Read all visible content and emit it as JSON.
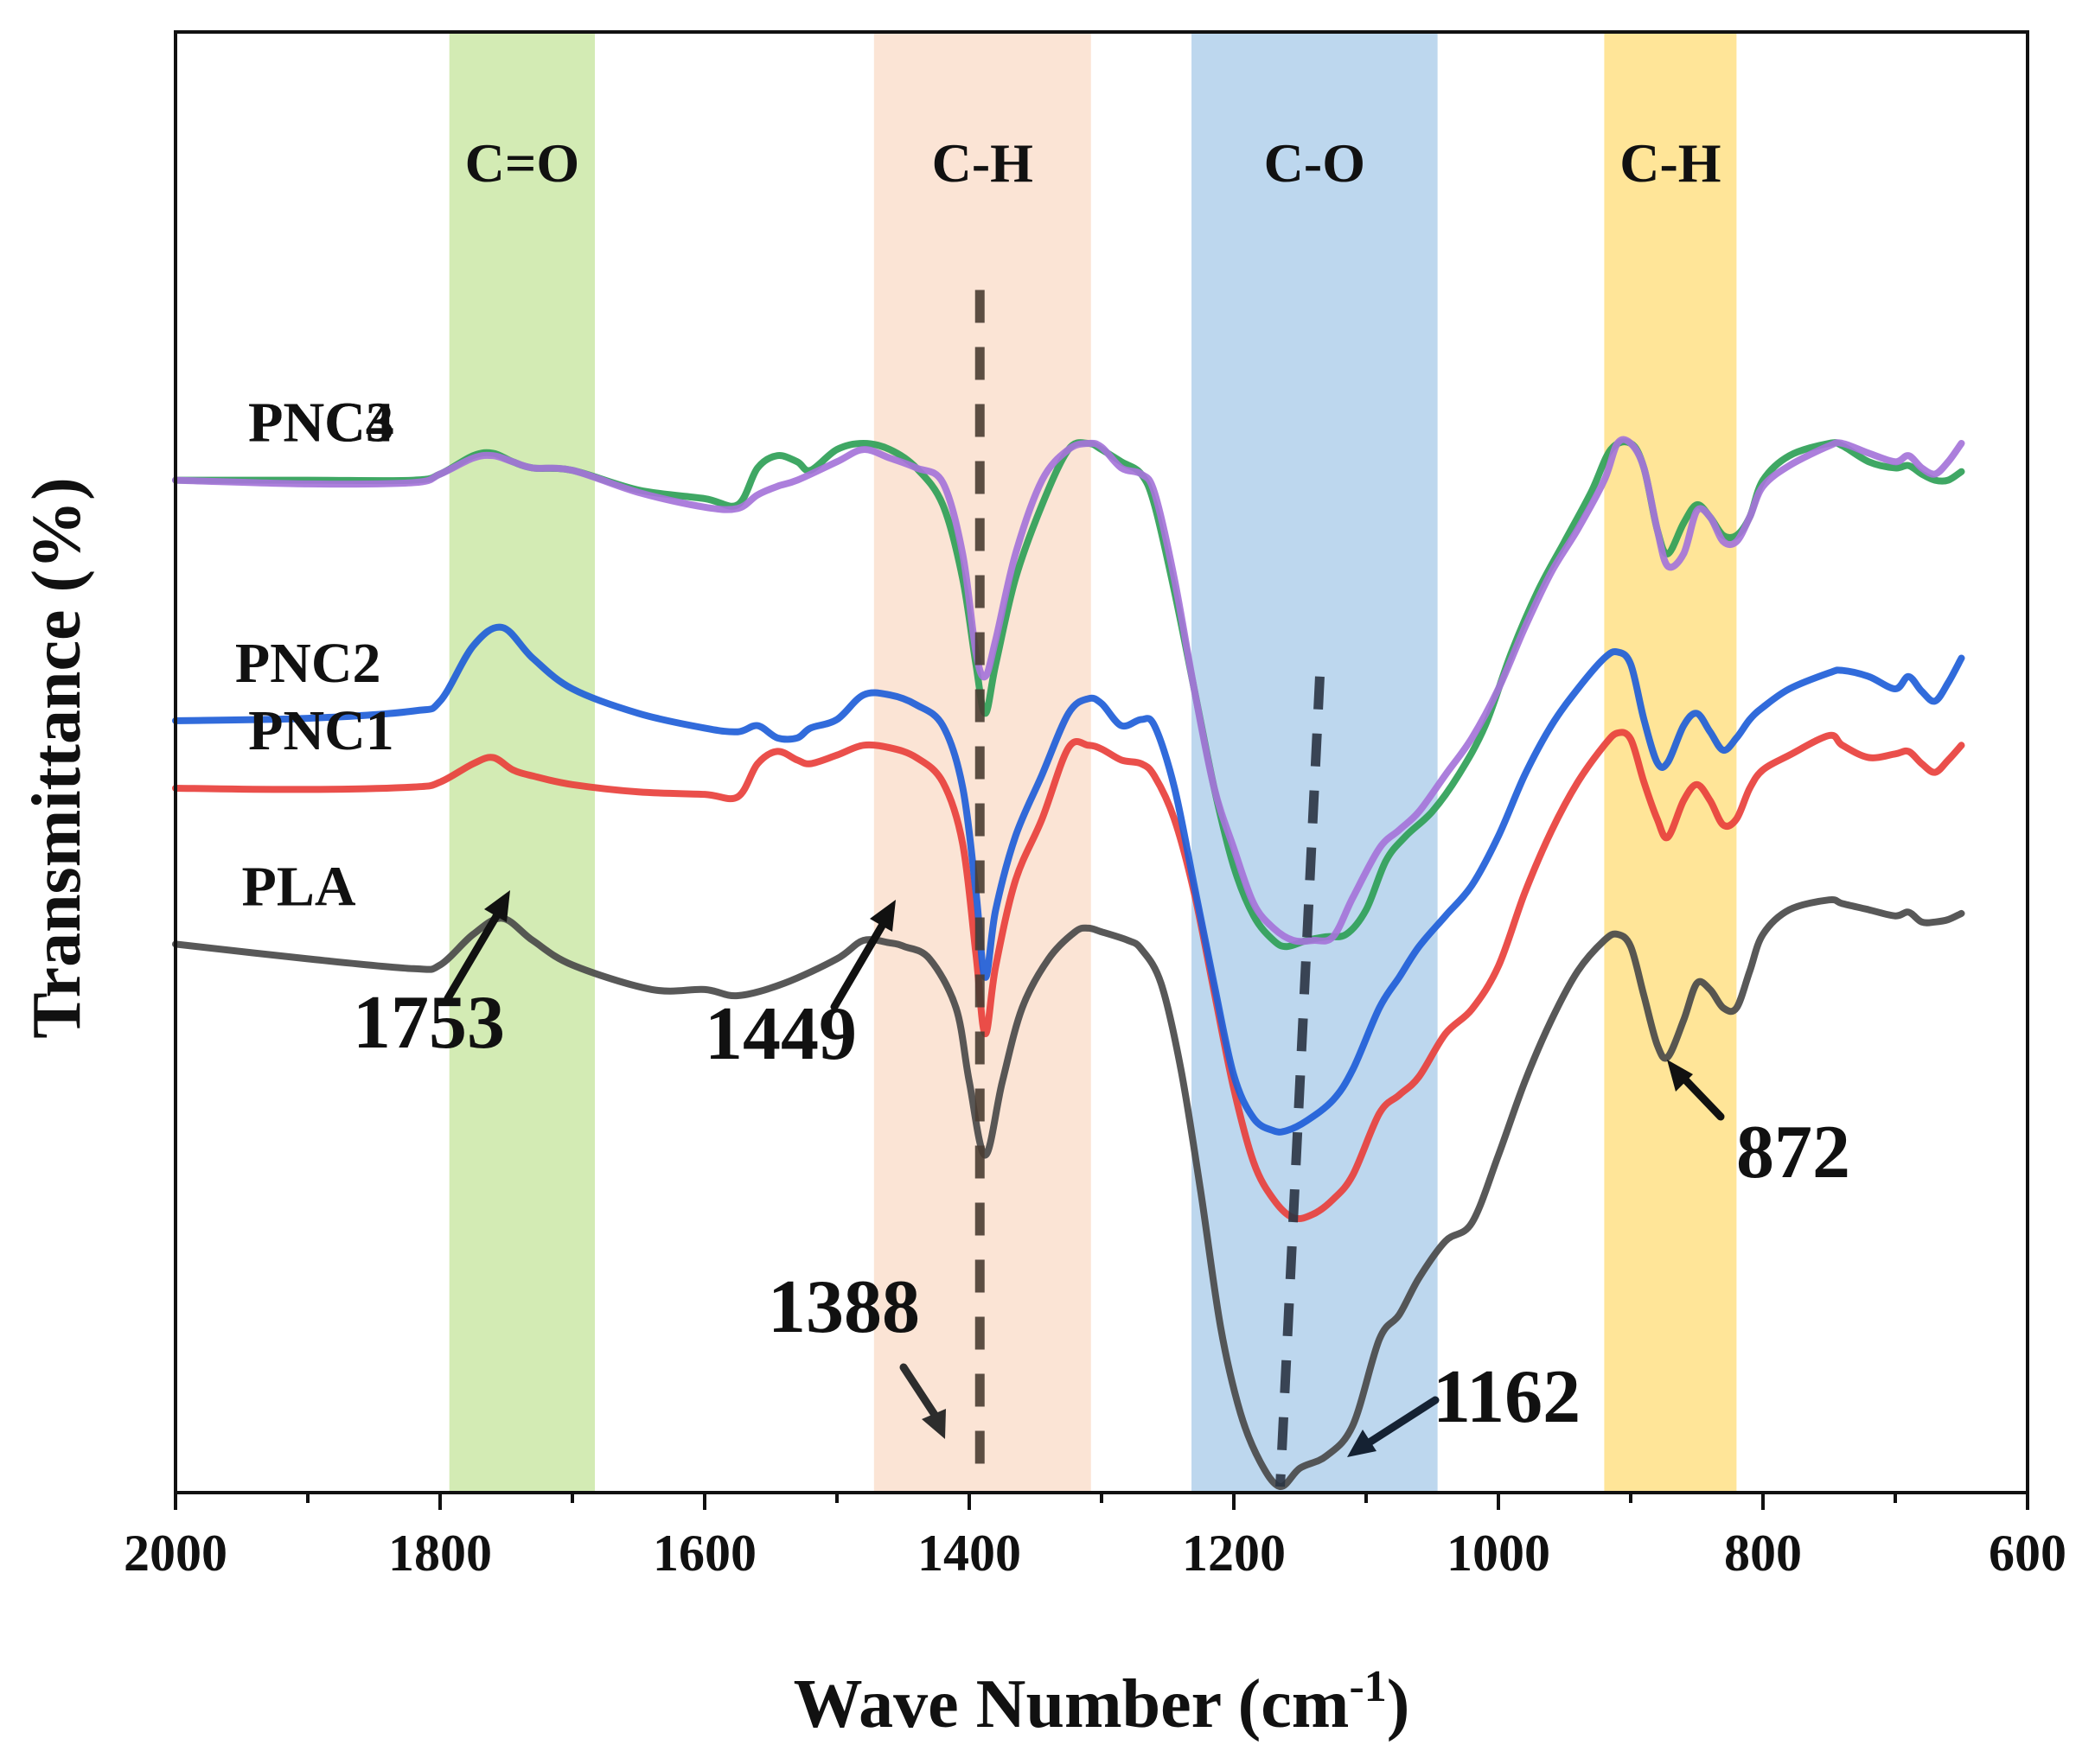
{
  "chart_data": {
    "type": "line",
    "title": "",
    "xlabel": "Wave Number (cm",
    "xlabel_sup": "-1",
    "xlabel_suffix": ")",
    "ylabel": "Transmittance (%)",
    "xlim": [
      2000,
      600
    ],
    "x_inverted": true,
    "ylim": [
      0,
      1
    ],
    "y_ticks_labeled": false,
    "x_ticks": [
      2000,
      1800,
      1600,
      1400,
      1200,
      1000,
      800,
      600
    ],
    "x_tick_labels": [
      "2000",
      "1800",
      "1600",
      "1400",
      "1200",
      "1000",
      "800",
      "600"
    ],
    "bands": [
      {
        "label": "C=O",
        "from": 1793,
        "to": 1683,
        "color": "#d3ebb4"
      },
      {
        "label": "C-H",
        "from": 1472,
        "to": 1308,
        "color": "#fbe4d5"
      },
      {
        "label": "C-O",
        "from": 1232,
        "to": 1046,
        "color": "#bdd7ee"
      },
      {
        "label": "C-H",
        "from": 920,
        "to": 820,
        "color": "#ffe598"
      }
    ],
    "reference_lines": [
      {
        "from": [
          1392,
          0.975
        ],
        "to": [
          1392,
          0.0
        ],
        "color": "#4a3d33"
      },
      {
        "from": [
          1135,
          0.66
        ],
        "to": [
          1165,
          0.0
        ],
        "color": "#2b3544"
      }
    ],
    "series": [
      {
        "name": "PLA",
        "color": "#4a4a4a",
        "offset": 0.0,
        "label_x": 1950,
        "x": [
          2000,
          1900,
          1820,
          1800,
          1775,
          1753,
          1730,
          1700,
          1640,
          1600,
          1575,
          1540,
          1500,
          1480,
          1460,
          1449,
          1430,
          1410,
          1400,
          1388,
          1375,
          1360,
          1340,
          1320,
          1310,
          1300,
          1280,
          1270,
          1255,
          1240,
          1225,
          1210,
          1195,
          1180,
          1165,
          1150,
          1130,
          1110,
          1090,
          1075,
          1060,
          1040,
          1020,
          1000,
          980,
          960,
          940,
          920,
          910,
          900,
          890,
          880,
          872,
          860,
          850,
          840,
          830,
          820,
          810,
          800,
          780,
          750,
          740,
          720,
          700,
          690,
          680,
          670,
          660,
          650
        ],
        "y": [
          0.442,
          0.43,
          0.422,
          0.425,
          0.45,
          0.463,
          0.445,
          0.425,
          0.405,
          0.405,
          0.4,
          0.41,
          0.43,
          0.445,
          0.443,
          0.44,
          0.43,
          0.39,
          0.33,
          0.27,
          0.33,
          0.39,
          0.43,
          0.452,
          0.455,
          0.452,
          0.445,
          0.438,
          0.41,
          0.34,
          0.24,
          0.13,
          0.06,
          0.02,
          0.0,
          0.015,
          0.025,
          0.05,
          0.12,
          0.14,
          0.17,
          0.2,
          0.215,
          0.27,
          0.33,
          0.38,
          0.42,
          0.445,
          0.45,
          0.44,
          0.4,
          0.36,
          0.35,
          0.38,
          0.41,
          0.405,
          0.39,
          0.39,
          0.42,
          0.45,
          0.47,
          0.478,
          0.475,
          0.47,
          0.465,
          0.468,
          0.46,
          0.46,
          0.462,
          0.467
        ]
      },
      {
        "name": "PNC1",
        "color": "#e8403c",
        "offset": 0.104,
        "label_x": 1945,
        "x": [
          2000,
          1900,
          1820,
          1800,
          1775,
          1760,
          1745,
          1730,
          1700,
          1650,
          1600,
          1575,
          1560,
          1545,
          1530,
          1520,
          1500,
          1480,
          1460,
          1440,
          1420,
          1405,
          1395,
          1388,
          1380,
          1365,
          1345,
          1325,
          1310,
          1300,
          1285,
          1270,
          1260,
          1245,
          1230,
          1215,
          1200,
          1185,
          1170,
          1155,
          1140,
          1125,
          1110,
          1090,
          1075,
          1060,
          1040,
          1020,
          1000,
          980,
          960,
          940,
          920,
          910,
          900,
          890,
          880,
          872,
          860,
          850,
          840,
          830,
          820,
          810,
          800,
          780,
          750,
          740,
          720,
          700,
          690,
          680,
          670,
          660,
          650
        ],
        "y": [
          0.465,
          0.464,
          0.466,
          0.47,
          0.485,
          0.49,
          0.48,
          0.475,
          0.468,
          0.462,
          0.46,
          0.458,
          0.485,
          0.495,
          0.488,
          0.485,
          0.492,
          0.5,
          0.498,
          0.49,
          0.47,
          0.42,
          0.33,
          0.265,
          0.32,
          0.39,
          0.44,
          0.498,
          0.5,
          0.497,
          0.488,
          0.485,
          0.475,
          0.44,
          0.38,
          0.3,
          0.22,
          0.16,
          0.13,
          0.115,
          0.118,
          0.13,
          0.15,
          0.2,
          0.215,
          0.23,
          0.265,
          0.285,
          0.32,
          0.38,
          0.43,
          0.47,
          0.5,
          0.51,
          0.505,
          0.47,
          0.44,
          0.425,
          0.455,
          0.468,
          0.455,
          0.435,
          0.44,
          0.465,
          0.48,
          0.492,
          0.508,
          0.5,
          0.49,
          0.493,
          0.495,
          0.485,
          0.478,
          0.488,
          0.5
        ]
      },
      {
        "name": "PNC2",
        "color": "#1f5ed8",
        "offset": 0.1,
        "label_x": 1955,
        "x": [
          2000,
          1900,
          1820,
          1800,
          1775,
          1753,
          1730,
          1700,
          1650,
          1600,
          1575,
          1560,
          1545,
          1530,
          1520,
          1500,
          1480,
          1460,
          1440,
          1420,
          1405,
          1395,
          1388,
          1380,
          1365,
          1345,
          1325,
          1310,
          1300,
          1285,
          1270,
          1260,
          1245,
          1230,
          1215,
          1200,
          1185,
          1170,
          1160,
          1145,
          1125,
          1110,
          1090,
          1075,
          1060,
          1040,
          1020,
          1000,
          980,
          960,
          940,
          920,
          910,
          900,
          890,
          880,
          872,
          860,
          850,
          840,
          830,
          820,
          810,
          800,
          780,
          750,
          740,
          720,
          700,
          690,
          680,
          670,
          660,
          650
        ],
        "y": [
          0.524,
          0.526,
          0.532,
          0.54,
          0.585,
          0.6,
          0.575,
          0.55,
          0.53,
          0.518,
          0.515,
          0.52,
          0.51,
          0.51,
          0.518,
          0.525,
          0.545,
          0.545,
          0.537,
          0.52,
          0.47,
          0.385,
          0.315,
          0.37,
          0.43,
          0.48,
          0.53,
          0.542,
          0.538,
          0.52,
          0.525,
          0.52,
          0.47,
          0.39,
          0.31,
          0.235,
          0.2,
          0.19,
          0.19,
          0.198,
          0.215,
          0.24,
          0.29,
          0.315,
          0.34,
          0.365,
          0.39,
          0.43,
          0.48,
          0.52,
          0.55,
          0.575,
          0.58,
          0.57,
          0.525,
          0.49,
          0.49,
          0.52,
          0.53,
          0.515,
          0.5,
          0.51,
          0.525,
          0.535,
          0.55,
          0.563,
          0.565,
          0.56,
          0.55,
          0.56,
          0.548,
          0.54,
          0.555,
          0.575
        ]
      },
      {
        "name": "PNC3",
        "color": "#2fa057",
        "offset": 0.1,
        "label_x": 1945,
        "x": [
          2000,
          1900,
          1820,
          1800,
          1775,
          1760,
          1745,
          1730,
          1700,
          1650,
          1600,
          1575,
          1560,
          1545,
          1530,
          1520,
          1500,
          1480,
          1460,
          1440,
          1420,
          1405,
          1395,
          1388,
          1380,
          1365,
          1345,
          1325,
          1310,
          1300,
          1285,
          1270,
          1260,
          1245,
          1230,
          1215,
          1200,
          1185,
          1170,
          1160,
          1145,
          1130,
          1115,
          1100,
          1085,
          1070,
          1050,
          1030,
          1010,
          990,
          970,
          950,
          930,
          915,
          900,
          890,
          880,
          872,
          860,
          850,
          840,
          830,
          820,
          810,
          800,
          780,
          750,
          740,
          720,
          700,
          690,
          680,
          670,
          660,
          650
        ],
        "y": [
          0.72,
          0.72,
          0.72,
          0.725,
          0.74,
          0.742,
          0.735,
          0.73,
          0.728,
          0.712,
          0.705,
          0.7,
          0.73,
          0.74,
          0.735,
          0.728,
          0.745,
          0.75,
          0.745,
          0.73,
          0.7,
          0.64,
          0.57,
          0.53,
          0.57,
          0.64,
          0.7,
          0.745,
          0.75,
          0.745,
          0.735,
          0.725,
          0.7,
          0.63,
          0.55,
          0.47,
          0.405,
          0.365,
          0.345,
          0.34,
          0.345,
          0.348,
          0.35,
          0.37,
          0.41,
          0.43,
          0.45,
          0.48,
          0.52,
          0.58,
          0.63,
          0.67,
          0.71,
          0.745,
          0.75,
          0.73,
          0.68,
          0.66,
          0.685,
          0.7,
          0.69,
          0.675,
          0.675,
          0.69,
          0.72,
          0.74,
          0.75,
          0.748,
          0.735,
          0.73,
          0.732,
          0.725,
          0.72,
          0.72,
          0.727
        ]
      },
      {
        "name": "PNC4",
        "color": "#a574d9",
        "offset": 0.0,
        "label_x": 1945,
        "x": [
          2000,
          1900,
          1820,
          1800,
          1775,
          1760,
          1745,
          1730,
          1700,
          1650,
          1600,
          1575,
          1560,
          1545,
          1530,
          1500,
          1480,
          1460,
          1440,
          1420,
          1405,
          1395,
          1388,
          1380,
          1365,
          1345,
          1325,
          1310,
          1300,
          1285,
          1270,
          1260,
          1245,
          1230,
          1215,
          1200,
          1185,
          1170,
          1155,
          1140,
          1125,
          1110,
          1090,
          1075,
          1060,
          1040,
          1020,
          1000,
          980,
          960,
          940,
          920,
          910,
          900,
          890,
          880,
          872,
          860,
          850,
          840,
          830,
          820,
          810,
          800,
          780,
          750,
          740,
          720,
          700,
          690,
          680,
          670,
          660,
          650
        ],
        "y": [
          0.82,
          0.817,
          0.818,
          0.825,
          0.838,
          0.84,
          0.835,
          0.83,
          0.828,
          0.81,
          0.798,
          0.797,
          0.808,
          0.815,
          0.82,
          0.835,
          0.845,
          0.838,
          0.83,
          0.818,
          0.76,
          0.68,
          0.66,
          0.69,
          0.76,
          0.82,
          0.845,
          0.85,
          0.847,
          0.83,
          0.825,
          0.81,
          0.74,
          0.65,
          0.57,
          0.52,
          0.475,
          0.455,
          0.445,
          0.445,
          0.448,
          0.48,
          0.52,
          0.535,
          0.55,
          0.58,
          0.61,
          0.65,
          0.7,
          0.745,
          0.78,
          0.82,
          0.85,
          0.85,
          0.83,
          0.78,
          0.75,
          0.76,
          0.795,
          0.79,
          0.77,
          0.77,
          0.79,
          0.815,
          0.832,
          0.848,
          0.85,
          0.842,
          0.835,
          0.84,
          0.83,
          0.825,
          0.835,
          0.85
        ]
      }
    ],
    "annotations": [
      {
        "text": "1753"
      },
      {
        "text": "1449"
      },
      {
        "text": "1388"
      },
      {
        "text": "1162"
      },
      {
        "text": "872"
      }
    ]
  }
}
